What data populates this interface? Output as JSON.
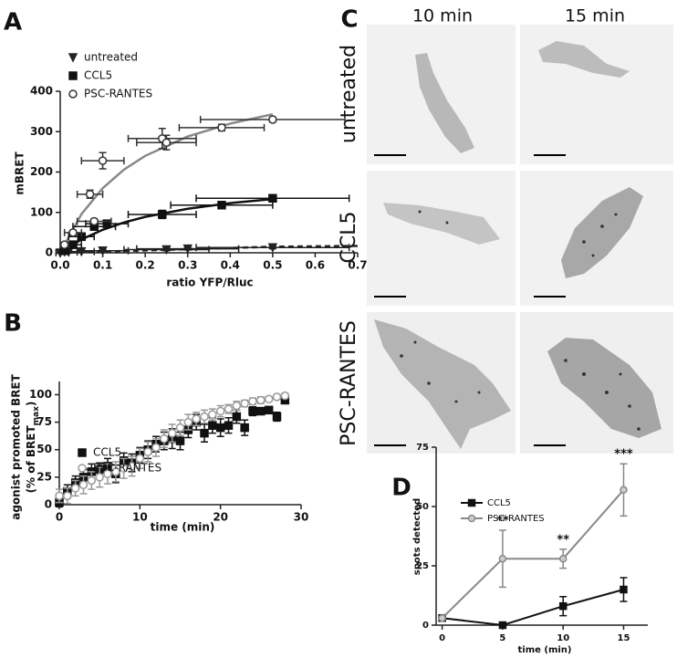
{
  "chart_data": [
    {
      "type": "scatter",
      "panel": "A",
      "xlabel": "ratio YFP/Rluc",
      "ylabel": "mBRET",
      "xlim": [
        0,
        0.7
      ],
      "ylim": [
        0,
        400
      ],
      "xticks": [
        {
          "value": 0,
          "label": "0.0"
        },
        0.1,
        0.2,
        0.3,
        0.4,
        0.5,
        0.6,
        0.7
      ],
      "yticks": [
        0,
        100,
        200,
        300,
        400
      ],
      "series": [
        {
          "name": "untreated",
          "marker": "triangle",
          "color": "#222222",
          "marker_fill": "#222222",
          "x": [
            0.0,
            0.02,
            0.05,
            0.1,
            0.25,
            0.3,
            0.5
          ],
          "values": [
            0,
            2,
            3,
            5,
            8,
            10,
            13
          ],
          "xerr": [
            0.01,
            0.02,
            0.03,
            0.06,
            0.1,
            0.12,
            0.18
          ],
          "yerr": [
            1,
            1,
            2,
            2,
            3,
            3,
            3
          ]
        },
        {
          "name": "CCL5",
          "marker": "square",
          "color": "#111111",
          "marker_fill": "#111111",
          "x": [
            0.01,
            0.03,
            0.05,
            0.08,
            0.11,
            0.24,
            0.38,
            0.5
          ],
          "values": [
            5,
            20,
            40,
            65,
            72,
            95,
            118,
            135
          ],
          "xerr": [
            0.01,
            0.02,
            0.03,
            0.05,
            0.05,
            0.08,
            0.12,
            0.18
          ],
          "yerr": [
            3,
            5,
            5,
            8,
            8,
            10,
            8,
            6
          ]
        },
        {
          "name": "PSC-RANTES",
          "marker": "circle",
          "color": "#333333",
          "marker_fill": "#ffffff",
          "x": [
            0.01,
            0.03,
            0.07,
            0.08,
            0.1,
            0.24,
            0.25,
            0.38,
            0.5
          ],
          "values": [
            20,
            50,
            145,
            78,
            228,
            283,
            273,
            310,
            330
          ],
          "xerr": [
            0.01,
            0.02,
            0.03,
            0.04,
            0.05,
            0.08,
            0.07,
            0.1,
            0.17
          ],
          "yerr": [
            5,
            6,
            10,
            6,
            20,
            25,
            18,
            8,
            6
          ]
        }
      ],
      "fits": [
        {
          "color": "#222222",
          "dashed": true,
          "x": [
            0,
            0.1,
            0.2,
            0.3,
            0.4,
            0.5,
            0.6,
            0.7
          ],
          "values": [
            0,
            3,
            6,
            9,
            12,
            15,
            16,
            17
          ]
        },
        {
          "color": "#111111",
          "dashed": false,
          "x": [
            0,
            0.05,
            0.1,
            0.15,
            0.2,
            0.3,
            0.4,
            0.5
          ],
          "values": [
            0,
            33,
            57,
            75,
            89,
            109,
            123,
            133
          ]
        },
        {
          "color": "#888888",
          "dashed": false,
          "x": [
            0,
            0.05,
            0.1,
            0.15,
            0.2,
            0.3,
            0.4,
            0.5
          ],
          "values": [
            0,
            96,
            160,
            206,
            240,
            288,
            320,
            343
          ]
        }
      ]
    },
    {
      "type": "scatter",
      "panel": "B",
      "xlabel": "time (min)",
      "ylabel": "agonist promoted BRET",
      "ylabel_line2": "(% of BRET",
      "ylabel_sub": "max",
      "ylabel_end": ")",
      "xlim": [
        0,
        30
      ],
      "ylim": [
        0,
        112
      ],
      "xticks": [
        0,
        10,
        20,
        30
      ],
      "yticks": [
        0,
        25,
        50,
        75,
        100
      ],
      "x": [
        0,
        1,
        2,
        3,
        4,
        5,
        6,
        7,
        8,
        9,
        10,
        11,
        12,
        13,
        14,
        15,
        16,
        17,
        18,
        19,
        20,
        21,
        22,
        23,
        24,
        25,
        26,
        27,
        28
      ],
      "series": [
        {
          "name": "CCL5",
          "marker": "square",
          "color": "#111111",
          "marker_fill": "#111111",
          "values": [
            2,
            12,
            20,
            25,
            30,
            32,
            35,
            28,
            40,
            38,
            45,
            50,
            55,
            58,
            60,
            58,
            68,
            75,
            65,
            72,
            70,
            72,
            80,
            70,
            85,
            85,
            86,
            80,
            95
          ],
          "yerr": [
            4,
            6,
            6,
            7,
            7,
            6,
            7,
            8,
            7,
            8,
            7,
            8,
            7,
            8,
            9,
            8,
            7,
            7,
            8,
            7,
            8,
            7,
            6,
            7,
            4,
            3,
            3,
            4,
            3
          ]
        },
        {
          "name": "PSC-RANTES",
          "marker": "circle",
          "color": "#999999",
          "marker_fill": "#ffffff",
          "values": [
            8,
            8,
            15,
            18,
            22,
            25,
            28,
            30,
            33,
            35,
            42,
            48,
            52,
            60,
            65,
            70,
            75,
            78,
            80,
            82,
            85,
            87,
            90,
            92,
            94,
            95,
            96,
            98,
            99
          ],
          "yerr": [
            6,
            7,
            7,
            8,
            8,
            9,
            9,
            9,
            9,
            9,
            9,
            9,
            8,
            8,
            8,
            7,
            7,
            6,
            6,
            5,
            5,
            4,
            4,
            3,
            3,
            3,
            2,
            2,
            2
          ]
        }
      ]
    },
    {
      "type": "line",
      "panel": "D",
      "xlabel": "time (min)",
      "ylabel": "spots detected",
      "xlim": [
        -0.5,
        17
      ],
      "ylim": [
        0,
        75
      ],
      "xticks": [
        0,
        5,
        10,
        15
      ],
      "yticks": [
        0,
        25,
        50,
        75
      ],
      "x": [
        0,
        5,
        10,
        15
      ],
      "significance": [
        null,
        "**",
        "**",
        "***"
      ],
      "series": [
        {
          "name": "CCL5",
          "marker": "square",
          "color": "#111111",
          "marker_fill": "#111111",
          "values": [
            3,
            0,
            8,
            15
          ],
          "yerr": [
            0,
            0,
            4,
            5
          ]
        },
        {
          "name": "PSC-RANTES",
          "marker": "circle",
          "color": "#888888",
          "marker_fill": "#cccccc",
          "values": [
            3,
            28,
            28,
            57
          ],
          "yerr": [
            0,
            12,
            4,
            11
          ]
        }
      ]
    }
  ],
  "image_panel": {
    "panel": "C",
    "columns": [
      "10 min",
      "15 min"
    ],
    "rows": [
      "untreated",
      "CCL5",
      "PSC-RANTES"
    ]
  }
}
